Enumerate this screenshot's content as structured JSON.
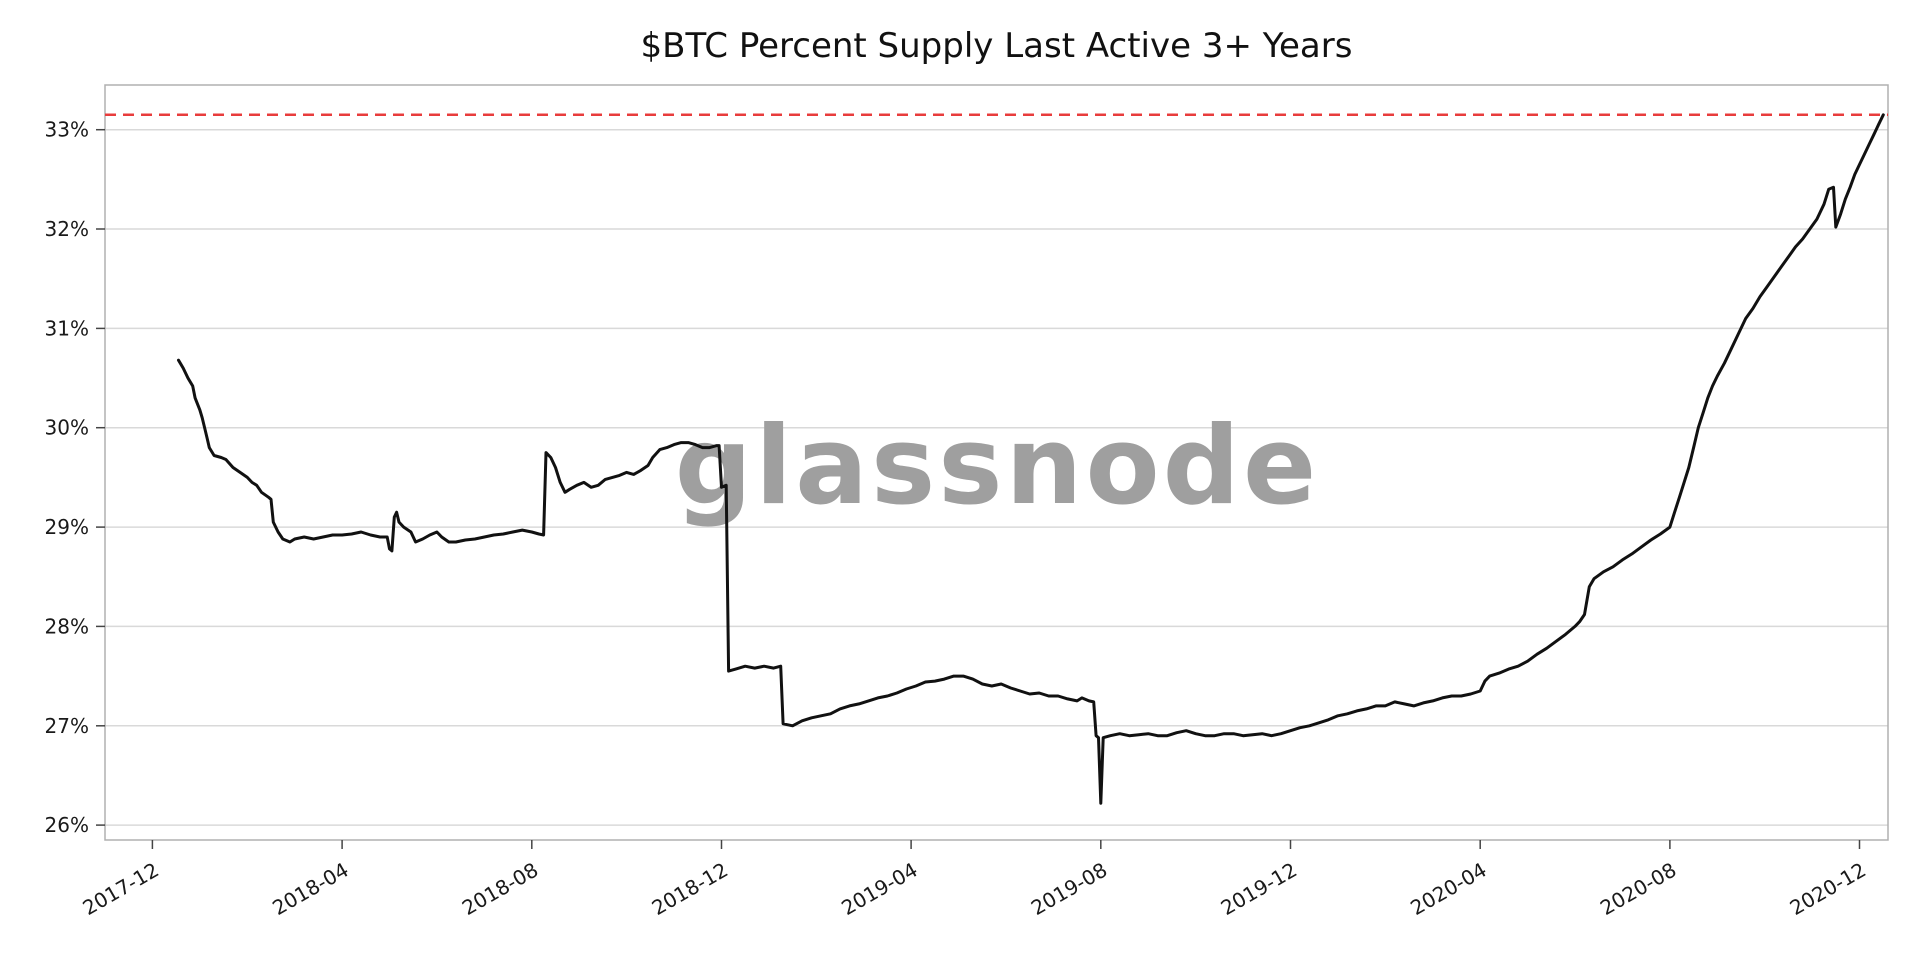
{
  "chart_data": {
    "type": "line",
    "title": "$BTC Percent Supply Last Active 3+ Years",
    "watermark": "glassnode",
    "watermark_color": "#9f9f9f",
    "background": "#ffffff",
    "grid": "horizontal",
    "x_unit": "months since 2017-12-01",
    "xlim": [
      -1.0,
      36.6
    ],
    "ylim": [
      25.85,
      33.45
    ],
    "x_tick_positions": [
      0,
      4,
      8,
      12,
      16,
      20,
      24,
      28,
      32,
      36
    ],
    "x_tick_labels": [
      "2017-12",
      "2018-04",
      "2018-08",
      "2018-12",
      "2019-04",
      "2019-08",
      "2019-12",
      "2020-04",
      "2020-08",
      "2020-12"
    ],
    "y_tick_values": [
      26,
      27,
      28,
      29,
      30,
      31,
      32,
      33
    ],
    "y_tick_labels": [
      "26%",
      "27%",
      "28%",
      "29%",
      "30%",
      "31%",
      "32%",
      "33%"
    ],
    "reference_line": {
      "value": 33.15,
      "color": "#e83c3c",
      "style": "dashed"
    },
    "series": [
      {
        "name": "BTC Percent Supply Last Active 3+ Years",
        "color": "#111111",
        "points": [
          [
            0.55,
            30.68
          ],
          [
            0.65,
            30.6
          ],
          [
            0.75,
            30.5
          ],
          [
            0.85,
            30.42
          ],
          [
            0.9,
            30.3
          ],
          [
            1.0,
            30.18
          ],
          [
            1.05,
            30.1
          ],
          [
            1.1,
            30.0
          ],
          [
            1.15,
            29.9
          ],
          [
            1.2,
            29.8
          ],
          [
            1.3,
            29.72
          ],
          [
            1.45,
            29.7
          ],
          [
            1.55,
            29.68
          ],
          [
            1.7,
            29.6
          ],
          [
            1.85,
            29.55
          ],
          [
            2.0,
            29.5
          ],
          [
            2.1,
            29.45
          ],
          [
            2.2,
            29.42
          ],
          [
            2.3,
            29.35
          ],
          [
            2.45,
            29.3
          ],
          [
            2.5,
            29.28
          ],
          [
            2.55,
            29.05
          ],
          [
            2.65,
            28.95
          ],
          [
            2.75,
            28.88
          ],
          [
            2.9,
            28.85
          ],
          [
            3.0,
            28.88
          ],
          [
            3.2,
            28.9
          ],
          [
            3.4,
            28.88
          ],
          [
            3.6,
            28.9
          ],
          [
            3.8,
            28.92
          ],
          [
            4.0,
            28.92
          ],
          [
            4.2,
            28.93
          ],
          [
            4.4,
            28.95
          ],
          [
            4.6,
            28.92
          ],
          [
            4.8,
            28.9
          ],
          [
            4.95,
            28.9
          ],
          [
            5.0,
            28.78
          ],
          [
            5.05,
            28.76
          ],
          [
            5.1,
            29.1
          ],
          [
            5.15,
            29.15
          ],
          [
            5.2,
            29.05
          ],
          [
            5.3,
            29.0
          ],
          [
            5.45,
            28.95
          ],
          [
            5.55,
            28.85
          ],
          [
            5.7,
            28.88
          ],
          [
            5.85,
            28.92
          ],
          [
            6.0,
            28.95
          ],
          [
            6.1,
            28.9
          ],
          [
            6.25,
            28.85
          ],
          [
            6.4,
            28.85
          ],
          [
            6.6,
            28.87
          ],
          [
            6.8,
            28.88
          ],
          [
            7.0,
            28.9
          ],
          [
            7.2,
            28.92
          ],
          [
            7.4,
            28.93
          ],
          [
            7.6,
            28.95
          ],
          [
            7.8,
            28.97
          ],
          [
            8.0,
            28.95
          ],
          [
            8.15,
            28.93
          ],
          [
            8.25,
            28.92
          ],
          [
            8.3,
            29.75
          ],
          [
            8.4,
            29.7
          ],
          [
            8.5,
            29.6
          ],
          [
            8.6,
            29.45
          ],
          [
            8.7,
            29.35
          ],
          [
            8.8,
            29.38
          ],
          [
            8.95,
            29.42
          ],
          [
            9.1,
            29.45
          ],
          [
            9.25,
            29.4
          ],
          [
            9.4,
            29.42
          ],
          [
            9.55,
            29.48
          ],
          [
            9.7,
            29.5
          ],
          [
            9.85,
            29.52
          ],
          [
            10.0,
            29.55
          ],
          [
            10.15,
            29.53
          ],
          [
            10.3,
            29.57
          ],
          [
            10.45,
            29.62
          ],
          [
            10.55,
            29.7
          ],
          [
            10.7,
            29.78
          ],
          [
            10.85,
            29.8
          ],
          [
            11.0,
            29.83
          ],
          [
            11.15,
            29.85
          ],
          [
            11.3,
            29.85
          ],
          [
            11.45,
            29.83
          ],
          [
            11.6,
            29.8
          ],
          [
            11.75,
            29.8
          ],
          [
            11.9,
            29.82
          ],
          [
            11.95,
            29.82
          ],
          [
            12.0,
            29.4
          ],
          [
            12.1,
            29.42
          ],
          [
            12.15,
            27.55
          ],
          [
            12.3,
            27.57
          ],
          [
            12.5,
            27.6
          ],
          [
            12.7,
            27.58
          ],
          [
            12.9,
            27.6
          ],
          [
            13.1,
            27.58
          ],
          [
            13.25,
            27.6
          ],
          [
            13.3,
            27.02
          ],
          [
            13.5,
            27.0
          ],
          [
            13.7,
            27.05
          ],
          [
            13.9,
            27.08
          ],
          [
            14.1,
            27.1
          ],
          [
            14.3,
            27.12
          ],
          [
            14.5,
            27.17
          ],
          [
            14.7,
            27.2
          ],
          [
            14.9,
            27.22
          ],
          [
            15.1,
            27.25
          ],
          [
            15.3,
            27.28
          ],
          [
            15.5,
            27.3
          ],
          [
            15.7,
            27.33
          ],
          [
            15.9,
            27.37
          ],
          [
            16.1,
            27.4
          ],
          [
            16.3,
            27.44
          ],
          [
            16.5,
            27.45
          ],
          [
            16.7,
            27.47
          ],
          [
            16.9,
            27.5
          ],
          [
            17.1,
            27.5
          ],
          [
            17.3,
            27.47
          ],
          [
            17.5,
            27.42
          ],
          [
            17.7,
            27.4
          ],
          [
            17.9,
            27.42
          ],
          [
            18.1,
            27.38
          ],
          [
            18.3,
            27.35
          ],
          [
            18.5,
            27.32
          ],
          [
            18.7,
            27.33
          ],
          [
            18.9,
            27.3
          ],
          [
            19.1,
            27.3
          ],
          [
            19.3,
            27.27
          ],
          [
            19.5,
            27.25
          ],
          [
            19.6,
            27.28
          ],
          [
            19.75,
            27.25
          ],
          [
            19.85,
            27.24
          ],
          [
            19.9,
            26.9
          ],
          [
            19.95,
            26.88
          ],
          [
            20.0,
            26.22
          ],
          [
            20.05,
            26.88
          ],
          [
            20.2,
            26.9
          ],
          [
            20.4,
            26.92
          ],
          [
            20.6,
            26.9
          ],
          [
            20.8,
            26.91
          ],
          [
            21.0,
            26.92
          ],
          [
            21.2,
            26.9
          ],
          [
            21.4,
            26.9
          ],
          [
            21.6,
            26.93
          ],
          [
            21.8,
            26.95
          ],
          [
            22.0,
            26.92
          ],
          [
            22.2,
            26.9
          ],
          [
            22.4,
            26.9
          ],
          [
            22.6,
            26.92
          ],
          [
            22.8,
            26.92
          ],
          [
            23.0,
            26.9
          ],
          [
            23.2,
            26.91
          ],
          [
            23.4,
            26.92
          ],
          [
            23.6,
            26.9
          ],
          [
            23.8,
            26.92
          ],
          [
            24.0,
            26.95
          ],
          [
            24.2,
            26.98
          ],
          [
            24.4,
            27.0
          ],
          [
            24.6,
            27.03
          ],
          [
            24.8,
            27.06
          ],
          [
            25.0,
            27.1
          ],
          [
            25.2,
            27.12
          ],
          [
            25.4,
            27.15
          ],
          [
            25.6,
            27.17
          ],
          [
            25.8,
            27.2
          ],
          [
            26.0,
            27.2
          ],
          [
            26.2,
            27.24
          ],
          [
            26.4,
            27.22
          ],
          [
            26.6,
            27.2
          ],
          [
            26.8,
            27.23
          ],
          [
            27.0,
            27.25
          ],
          [
            27.2,
            27.28
          ],
          [
            27.4,
            27.3
          ],
          [
            27.6,
            27.3
          ],
          [
            27.8,
            27.32
          ],
          [
            28.0,
            27.35
          ],
          [
            28.1,
            27.45
          ],
          [
            28.2,
            27.5
          ],
          [
            28.4,
            27.53
          ],
          [
            28.6,
            27.57
          ],
          [
            28.8,
            27.6
          ],
          [
            29.0,
            27.65
          ],
          [
            29.2,
            27.72
          ],
          [
            29.4,
            27.78
          ],
          [
            29.6,
            27.85
          ],
          [
            29.8,
            27.92
          ],
          [
            30.0,
            28.0
          ],
          [
            30.1,
            28.05
          ],
          [
            30.2,
            28.12
          ],
          [
            30.3,
            28.4
          ],
          [
            30.4,
            28.48
          ],
          [
            30.6,
            28.55
          ],
          [
            30.8,
            28.6
          ],
          [
            31.0,
            28.67
          ],
          [
            31.2,
            28.73
          ],
          [
            31.4,
            28.8
          ],
          [
            31.6,
            28.87
          ],
          [
            31.8,
            28.93
          ],
          [
            32.0,
            29.0
          ],
          [
            32.1,
            29.15
          ],
          [
            32.2,
            29.3
          ],
          [
            32.3,
            29.45
          ],
          [
            32.4,
            29.6
          ],
          [
            32.5,
            29.8
          ],
          [
            32.6,
            30.0
          ],
          [
            32.7,
            30.15
          ],
          [
            32.8,
            30.3
          ],
          [
            32.9,
            30.42
          ],
          [
            33.0,
            30.52
          ],
          [
            33.15,
            30.65
          ],
          [
            33.3,
            30.8
          ],
          [
            33.45,
            30.95
          ],
          [
            33.6,
            31.1
          ],
          [
            33.75,
            31.2
          ],
          [
            33.9,
            31.32
          ],
          [
            34.05,
            31.42
          ],
          [
            34.2,
            31.52
          ],
          [
            34.35,
            31.62
          ],
          [
            34.5,
            31.72
          ],
          [
            34.65,
            31.82
          ],
          [
            34.8,
            31.9
          ],
          [
            34.95,
            32.0
          ],
          [
            35.1,
            32.1
          ],
          [
            35.25,
            32.25
          ],
          [
            35.35,
            32.4
          ],
          [
            35.45,
            32.42
          ],
          [
            35.5,
            32.02
          ],
          [
            35.6,
            32.15
          ],
          [
            35.7,
            32.3
          ],
          [
            35.8,
            32.42
          ],
          [
            35.9,
            32.55
          ],
          [
            36.0,
            32.65
          ],
          [
            36.1,
            32.75
          ],
          [
            36.2,
            32.85
          ],
          [
            36.3,
            32.95
          ],
          [
            36.4,
            33.05
          ],
          [
            36.5,
            33.15
          ]
        ]
      }
    ],
    "axis_colors": {
      "grid": "#d9d9d9",
      "border": "#b0b0b0",
      "tick": "#444444",
      "label": "#1a1a1a"
    }
  }
}
